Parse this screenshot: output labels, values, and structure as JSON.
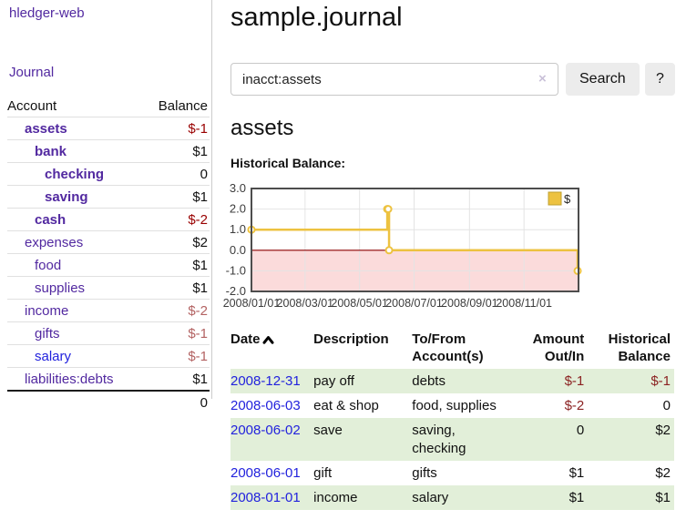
{
  "app": {
    "title": "hledger-web"
  },
  "sidebar": {
    "nav": [
      {
        "label": "Journal"
      }
    ],
    "accounts_table": {
      "headers": {
        "account": "Account",
        "balance": "Balance"
      },
      "rows": [
        {
          "name": "assets",
          "depth": 1,
          "bold": true,
          "link": "visited",
          "balance": "$-1",
          "balance_style": "neg-strong"
        },
        {
          "name": "bank",
          "depth": 2,
          "bold": true,
          "link": "visited",
          "balance": "$1",
          "balance_style": "pos"
        },
        {
          "name": "checking",
          "depth": 3,
          "bold": true,
          "link": "visited",
          "balance": "0",
          "balance_style": "pos"
        },
        {
          "name": "saving",
          "depth": 3,
          "bold": true,
          "link": "visited",
          "balance": "$1",
          "balance_style": "pos"
        },
        {
          "name": "cash",
          "depth": 2,
          "bold": true,
          "link": "visited",
          "balance": "$-2",
          "balance_style": "neg-strong"
        },
        {
          "name": "expenses",
          "depth": 1,
          "bold": false,
          "link": "visited",
          "balance": "$2",
          "balance_style": "pos"
        },
        {
          "name": "food",
          "depth": 2,
          "bold": false,
          "link": "visited",
          "balance": "$1",
          "balance_style": "pos"
        },
        {
          "name": "supplies",
          "depth": 2,
          "bold": false,
          "link": "visited",
          "balance": "$1",
          "balance_style": "pos"
        },
        {
          "name": "income",
          "depth": 1,
          "bold": false,
          "link": "visited",
          "balance": "$-2",
          "balance_style": "neg-soft"
        },
        {
          "name": "gifts",
          "depth": 2,
          "bold": false,
          "link": "visited",
          "balance": "$-1",
          "balance_style": "neg-soft"
        },
        {
          "name": "salary",
          "depth": 2,
          "bold": false,
          "link": "unvisited",
          "balance": "$-1",
          "balance_style": "neg-soft"
        },
        {
          "name": "liabilities:debts",
          "depth": 1,
          "bold": false,
          "link": "visited",
          "balance": "$1",
          "balance_style": "pos"
        }
      ],
      "total": "0"
    }
  },
  "main": {
    "title": "sample.journal",
    "search": {
      "value": "inacct:assets",
      "clear_icon": "×",
      "button": "Search",
      "help_button": "?"
    },
    "section_title": "assets",
    "chart_label": "Historical Balance:"
  },
  "chart_data": {
    "type": "line",
    "title": "Historical Balance",
    "legend": {
      "label": "$",
      "position": "top-right"
    },
    "series": [
      {
        "name": "$",
        "color": "#edc240",
        "steps": true,
        "points": [
          {
            "date": "2008/01/01",
            "day": 0,
            "value": 1.0
          },
          {
            "date": "2008/06/01",
            "day": 152,
            "value": 2.0
          },
          {
            "date": "2008/06/02",
            "day": 153,
            "value": 2.0
          },
          {
            "date": "2008/06/03",
            "day": 154,
            "value": 0.0
          },
          {
            "date": "2008/12/31",
            "day": 365,
            "value": -1.0
          }
        ]
      }
    ],
    "x_range_days": [
      0,
      366
    ],
    "x_ticks": [
      {
        "day": 0,
        "label": "2008/01/01"
      },
      {
        "day": 60,
        "label": "2008/03/01"
      },
      {
        "day": 121,
        "label": "2008/05/01"
      },
      {
        "day": 182,
        "label": "2008/07/01"
      },
      {
        "day": 244,
        "label": "2008/09/01"
      },
      {
        "day": 305,
        "label": "2008/11/01"
      }
    ],
    "ylim": [
      -2.0,
      3.0
    ],
    "y_ticks": [
      3.0,
      2.0,
      1.0,
      0.0,
      -1.0,
      -2.0
    ],
    "grid": true,
    "colors": {
      "line": "#edc240",
      "marker_fill": "#ffffff",
      "negative_region": "#fbdbdb",
      "zero_line": "#8b0000",
      "grid_line": "#e4e4e4",
      "border": "#4d4d4d",
      "tick_text": "#3c3c3c"
    }
  },
  "register_table": {
    "headers": {
      "date": "Date",
      "description": "Description",
      "accounts": "To/From Account(s)",
      "amount": "Amount Out/In",
      "balance": "Historical Balance"
    },
    "rows": [
      {
        "date": "2008-12-31",
        "description": "pay off",
        "accounts": "debts",
        "amount": "$-1",
        "amount_neg": true,
        "balance": "$-1",
        "balance_neg": true,
        "shade": true
      },
      {
        "date": "2008-06-03",
        "description": "eat & shop",
        "accounts": "food, supplies",
        "amount": "$-2",
        "amount_neg": true,
        "balance": "0",
        "balance_neg": false,
        "shade": false
      },
      {
        "date": "2008-06-02",
        "description": "save",
        "accounts": "saving, checking",
        "amount": "0",
        "amount_neg": false,
        "balance": "$2",
        "balance_neg": false,
        "shade": true
      },
      {
        "date": "2008-06-01",
        "description": "gift",
        "accounts": "gifts",
        "amount": "$1",
        "amount_neg": false,
        "balance": "$2",
        "balance_neg": false,
        "shade": false
      },
      {
        "date": "2008-01-01",
        "description": "income",
        "accounts": "salary",
        "amount": "$1",
        "amount_neg": false,
        "balance": "$1",
        "balance_neg": false,
        "shade": true
      }
    ]
  }
}
